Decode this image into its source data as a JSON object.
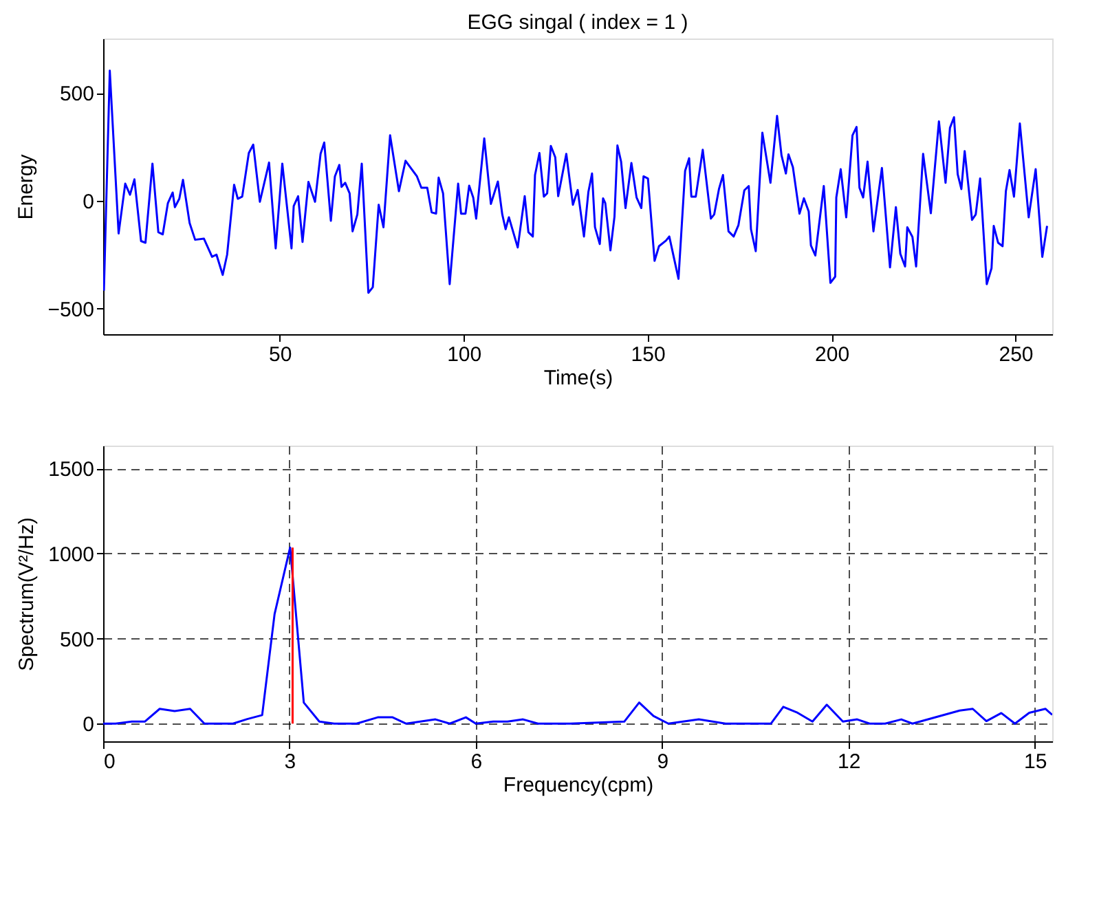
{
  "chart_data": [
    {
      "type": "line",
      "title": "EGG singal   ( index = 1 )",
      "xlabel": "Time(s)",
      "ylabel": "Energy",
      "xlim": [
        2,
        260
      ],
      "ylim": [
        -618,
        753
      ],
      "xticks": [
        50,
        100,
        150,
        200,
        250
      ],
      "yticks": [
        -500,
        0,
        500
      ],
      "grid": false,
      "series": [
        {
          "color": "#0000ff",
          "x": [
            2.2,
            3.8,
            6.2,
            8.0,
            9.3,
            10.5,
            12.3,
            13.5,
            15.4,
            17.0,
            18.2,
            19.6,
            20.9,
            21.5,
            22.7,
            23.7,
            25.5,
            27.0,
            29.4,
            31.6,
            32.8,
            34.5,
            35.7,
            37.6,
            38.6,
            39.8,
            41.6,
            42.8,
            44.6,
            47.1,
            48.9,
            50.7,
            53.2,
            53.8,
            55.0,
            56.2,
            57.8,
            59.6,
            61.1,
            62.1,
            63.9,
            65.0,
            66.2,
            66.8,
            67.8,
            69.0,
            69.8,
            71.1,
            72.3,
            74.1,
            75.3,
            76.9,
            78.2,
            80.0,
            82.4,
            84.2,
            87.3,
            88.5,
            90.1,
            91.3,
            92.5,
            93.2,
            94.4,
            96.2,
            98.5,
            99.3,
            100.5,
            101.5,
            102.6,
            103.4,
            105.6,
            107.4,
            109.3,
            110.5,
            111.4,
            112.3,
            114.7,
            116.6,
            117.6,
            118.8,
            119.4,
            120.6,
            121.8,
            122.7,
            123.7,
            124.9,
            125.7,
            127.9,
            129.7,
            131.0,
            132.7,
            133.9,
            134.9,
            135.7,
            137.0,
            137.9,
            138.5,
            139.9,
            141.0,
            141.8,
            142.8,
            144.0,
            145.6,
            147.0,
            148.3,
            148.9,
            150.1,
            151.9,
            153.1,
            155.0,
            155.9,
            158.4,
            160.2,
            161.3,
            161.9,
            163.1,
            165.0,
            167.2,
            168.1,
            169.4,
            170.5,
            172.0,
            173.4,
            174.7,
            176.3,
            177.5,
            178.1,
            179.4,
            181.2,
            183.4,
            185.2,
            186.4,
            187.6,
            188.3,
            189.5,
            191.3,
            192.5,
            193.8,
            194.4,
            195.6,
            197.9,
            199.7,
            201.0,
            201.3,
            202.5,
            204.0,
            205.7,
            206.8,
            207.6,
            208.6,
            209.8,
            211.4,
            213.7,
            215.9,
            217.5,
            218.7,
            220.0,
            220.6,
            222.0,
            223.0,
            224.9,
            227.0,
            229.2,
            231.0,
            232.2,
            233.3,
            234.3,
            235.3,
            236.2,
            238.2,
            239.2,
            240.4,
            242.2,
            243.5,
            244.1,
            245.3,
            246.5,
            247.4,
            248.4,
            249.6,
            251.2,
            253.6,
            255.5,
            257.3,
            258.6
          ],
          "values": [
            -416,
            604,
            -151,
            80,
            29,
            100,
            -186,
            -194,
            173,
            -145,
            -155,
            -10,
            39,
            -29,
            10,
            98,
            -102,
            -180,
            -175,
            -259,
            -249,
            -343,
            -249,
            75,
            10,
            20,
            222,
            261,
            -4,
            178,
            -220,
            173,
            -220,
            -24,
            22,
            -190,
            88,
            -4,
            218,
            271,
            -92,
            114,
            167,
            65,
            84,
            35,
            -141,
            -63,
            173,
            -426,
            -400,
            -18,
            -122,
            304,
            45,
            186,
            114,
            61,
            61,
            -53,
            -59,
            108,
            35,
            -386,
            80,
            -59,
            -59,
            71,
            16,
            -82,
            290,
            -14,
            90,
            -63,
            -131,
            -76,
            -216,
            22,
            -145,
            -165,
            120,
            222,
            20,
            35,
            255,
            202,
            22,
            218,
            -18,
            51,
            -165,
            41,
            127,
            -122,
            -200,
            12,
            -10,
            -229,
            -73,
            257,
            182,
            -33,
            176,
            16,
            -33,
            114,
            104,
            -278,
            -210,
            -184,
            -165,
            -361,
            139,
            198,
            20,
            20,
            237,
            -82,
            -63,
            55,
            120,
            -141,
            -165,
            -112,
            49,
            69,
            -131,
            -233,
            316,
            84,
            394,
            212,
            127,
            216,
            157,
            -59,
            12,
            -49,
            -206,
            -253,
            69,
            -380,
            -351,
            16,
            147,
            -76,
            304,
            343,
            61,
            16,
            182,
            -141,
            153,
            -308,
            -29,
            -245,
            -304,
            -122,
            -167,
            -304,
            218,
            -57,
            369,
            84,
            339,
            388,
            124,
            55,
            231,
            -88,
            -63,
            104,
            -386,
            -312,
            -116,
            -194,
            -210,
            45,
            143,
            20,
            359,
            -76,
            147,
            -259,
            -116
          ]
        }
      ]
    },
    {
      "type": "line",
      "xlabel": "Frequency(cpm)",
      "ylabel": "Spectrum(V²/Hz)",
      "xlim": [
        0,
        15.28
      ],
      "ylim": [
        -104,
        1634
      ],
      "xticks": [
        0,
        3,
        6,
        9,
        12,
        15
      ],
      "yticks": [
        0,
        500,
        1000,
        1500
      ],
      "grid": true,
      "series": [
        {
          "color": "#0000ff",
          "x": [
            0,
            0.2,
            0.46,
            0.67,
            0.91,
            1.15,
            1.4,
            1.63,
            2.09,
            2.32,
            2.56,
            2.76,
            3.01,
            3.23,
            3.48,
            3.72,
            4.08,
            4.42,
            4.66,
            4.88,
            5.35,
            5.58,
            5.84,
            6.0,
            6.28,
            6.51,
            6.76,
            7.0,
            7.52,
            8.39,
            8.63,
            8.86,
            9.1,
            9.59,
            10.02,
            10.75,
            10.95,
            11.18,
            11.42,
            11.65,
            11.91,
            12.14,
            12.34,
            12.59,
            12.85,
            13.03,
            13.79,
            14.0,
            14.22,
            14.46,
            14.68,
            14.91,
            15.17,
            15.28
          ],
          "values": [
            0,
            0,
            12,
            12,
            87,
            74,
            87,
            0,
            0,
            27,
            50,
            644,
            1035,
            124,
            12,
            0,
            0,
            37,
            37,
            0,
            25,
            0,
            37,
            0,
            12,
            12,
            25,
            0,
            0,
            12,
            124,
            45,
            0,
            25,
            0,
            0,
            99,
            64,
            12,
            111,
            12,
            25,
            0,
            0,
            25,
            0,
            77,
            87,
            15,
            62,
            0,
            64,
            87,
            52
          ]
        },
        {
          "color": "#ff0000",
          "x": [
            3.05,
            3.05
          ],
          "values": [
            0,
            1035
          ]
        }
      ]
    }
  ]
}
